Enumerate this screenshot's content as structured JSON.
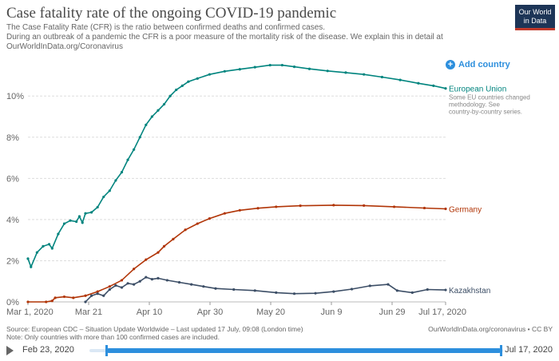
{
  "header": {
    "title": "Case fatality rate of the ongoing COVID-19 pandemic",
    "subtitle_lines": [
      "The Case Fatality Rate (CFR) is the ratio between confirmed deaths and confirmed cases.",
      "During an outbreak of a pandemic the CFR is a poor measure of the mortality risk of the disease. We explain this in detail at",
      "OurWorldInData.org/Coronavirus"
    ],
    "logo_line1": "Our World",
    "logo_line2": "in Data"
  },
  "controls": {
    "add_country": "Add country"
  },
  "chart_data": {
    "type": "line",
    "x_ticks": [
      "Mar 1, 2020",
      "Mar 21",
      "Apr 10",
      "Apr 30",
      "May 20",
      "Jun 9",
      "Jun 29",
      "Jul 17, 2020"
    ],
    "y_ticks": [
      "0%",
      "2%",
      "4%",
      "6%",
      "8%",
      "10%"
    ],
    "ylim": [
      0,
      11.6
    ],
    "xlim": [
      "2020-03-01",
      "2020-07-17"
    ],
    "grid": "horizontal",
    "series": [
      {
        "name": "European Union",
        "note": [
          "Some EU countries changed",
          "methodology. See",
          "country-by-country series."
        ],
        "color": "#00847e",
        "points": [
          [
            "2020-03-01",
            2.1
          ],
          [
            "2020-03-02",
            1.7
          ],
          [
            "2020-03-04",
            2.4
          ],
          [
            "2020-03-06",
            2.7
          ],
          [
            "2020-03-08",
            2.8
          ],
          [
            "2020-03-09",
            2.6
          ],
          [
            "2020-03-11",
            3.3
          ],
          [
            "2020-03-13",
            3.8
          ],
          [
            "2020-03-15",
            3.95
          ],
          [
            "2020-03-17",
            3.9
          ],
          [
            "2020-03-18",
            4.15
          ],
          [
            "2020-03-19",
            3.85
          ],
          [
            "2020-03-20",
            4.3
          ],
          [
            "2020-03-22",
            4.35
          ],
          [
            "2020-03-24",
            4.6
          ],
          [
            "2020-03-26",
            5.1
          ],
          [
            "2020-03-28",
            5.4
          ],
          [
            "2020-03-30",
            5.9
          ],
          [
            "2020-04-01",
            6.3
          ],
          [
            "2020-04-03",
            6.9
          ],
          [
            "2020-04-05",
            7.4
          ],
          [
            "2020-04-07",
            8.0
          ],
          [
            "2020-04-09",
            8.6
          ],
          [
            "2020-04-11",
            9.0
          ],
          [
            "2020-04-13",
            9.3
          ],
          [
            "2020-04-15",
            9.6
          ],
          [
            "2020-04-17",
            10.0
          ],
          [
            "2020-04-19",
            10.3
          ],
          [
            "2020-04-21",
            10.5
          ],
          [
            "2020-04-23",
            10.7
          ],
          [
            "2020-04-26",
            10.85
          ],
          [
            "2020-04-30",
            11.05
          ],
          [
            "2020-05-05",
            11.2
          ],
          [
            "2020-05-10",
            11.3
          ],
          [
            "2020-05-15",
            11.4
          ],
          [
            "2020-05-20",
            11.5
          ],
          [
            "2020-05-24",
            11.5
          ],
          [
            "2020-05-28",
            11.42
          ],
          [
            "2020-06-02",
            11.32
          ],
          [
            "2020-06-08",
            11.22
          ],
          [
            "2020-06-14",
            11.14
          ],
          [
            "2020-06-20",
            11.05
          ],
          [
            "2020-06-26",
            10.92
          ],
          [
            "2020-07-02",
            10.78
          ],
          [
            "2020-07-08",
            10.62
          ],
          [
            "2020-07-13",
            10.5
          ],
          [
            "2020-07-17",
            10.37
          ]
        ]
      },
      {
        "name": "Germany",
        "color": "#b13507",
        "points": [
          [
            "2020-03-01",
            0
          ],
          [
            "2020-03-07",
            0
          ],
          [
            "2020-03-09",
            0.05
          ],
          [
            "2020-03-10",
            0.2
          ],
          [
            "2020-03-13",
            0.25
          ],
          [
            "2020-03-16",
            0.2
          ],
          [
            "2020-03-20",
            0.3
          ],
          [
            "2020-03-24",
            0.5
          ],
          [
            "2020-03-28",
            0.75
          ],
          [
            "2020-04-01",
            1.05
          ],
          [
            "2020-04-05",
            1.6
          ],
          [
            "2020-04-09",
            2.05
          ],
          [
            "2020-04-13",
            2.4
          ],
          [
            "2020-04-15",
            2.7
          ],
          [
            "2020-04-18",
            3.05
          ],
          [
            "2020-04-22",
            3.5
          ],
          [
            "2020-04-26",
            3.8
          ],
          [
            "2020-04-30",
            4.05
          ],
          [
            "2020-05-05",
            4.3
          ],
          [
            "2020-05-10",
            4.45
          ],
          [
            "2020-05-16",
            4.55
          ],
          [
            "2020-05-22",
            4.62
          ],
          [
            "2020-05-30",
            4.67
          ],
          [
            "2020-06-10",
            4.7
          ],
          [
            "2020-06-20",
            4.68
          ],
          [
            "2020-06-30",
            4.62
          ],
          [
            "2020-07-10",
            4.56
          ],
          [
            "2020-07-17",
            4.52
          ]
        ]
      },
      {
        "name": "Kazakhstan",
        "color": "#3c4e66",
        "points": [
          [
            "2020-03-20",
            0
          ],
          [
            "2020-03-22",
            0.3
          ],
          [
            "2020-03-24",
            0.4
          ],
          [
            "2020-03-26",
            0.3
          ],
          [
            "2020-03-28",
            0.6
          ],
          [
            "2020-03-30",
            0.8
          ],
          [
            "2020-04-01",
            0.7
          ],
          [
            "2020-04-03",
            0.9
          ],
          [
            "2020-04-05",
            0.85
          ],
          [
            "2020-04-07",
            1.0
          ],
          [
            "2020-04-09",
            1.2
          ],
          [
            "2020-04-11",
            1.1
          ],
          [
            "2020-04-13",
            1.15
          ],
          [
            "2020-04-16",
            1.05
          ],
          [
            "2020-04-20",
            0.95
          ],
          [
            "2020-04-24",
            0.85
          ],
          [
            "2020-04-28",
            0.75
          ],
          [
            "2020-05-02",
            0.65
          ],
          [
            "2020-05-08",
            0.6
          ],
          [
            "2020-05-15",
            0.55
          ],
          [
            "2020-05-22",
            0.45
          ],
          [
            "2020-05-28",
            0.4
          ],
          [
            "2020-06-04",
            0.42
          ],
          [
            "2020-06-10",
            0.5
          ],
          [
            "2020-06-16",
            0.62
          ],
          [
            "2020-06-22",
            0.78
          ],
          [
            "2020-06-28",
            0.85
          ],
          [
            "2020-07-01",
            0.55
          ],
          [
            "2020-07-06",
            0.45
          ],
          [
            "2020-07-11",
            0.6
          ],
          [
            "2020-07-17",
            0.58
          ]
        ]
      }
    ]
  },
  "footer": {
    "source": "Source: European CDC – Situation Update Worldwide – Last updated 17 July, 09:08 (London time)",
    "note": "Note: Only countries with more than 100 confirmed cases are included.",
    "url": "OurWorldInData.org/coronavirus • CC BY"
  },
  "timeline": {
    "start": "Feb 23, 2020",
    "end": "Jul 17, 2020"
  }
}
